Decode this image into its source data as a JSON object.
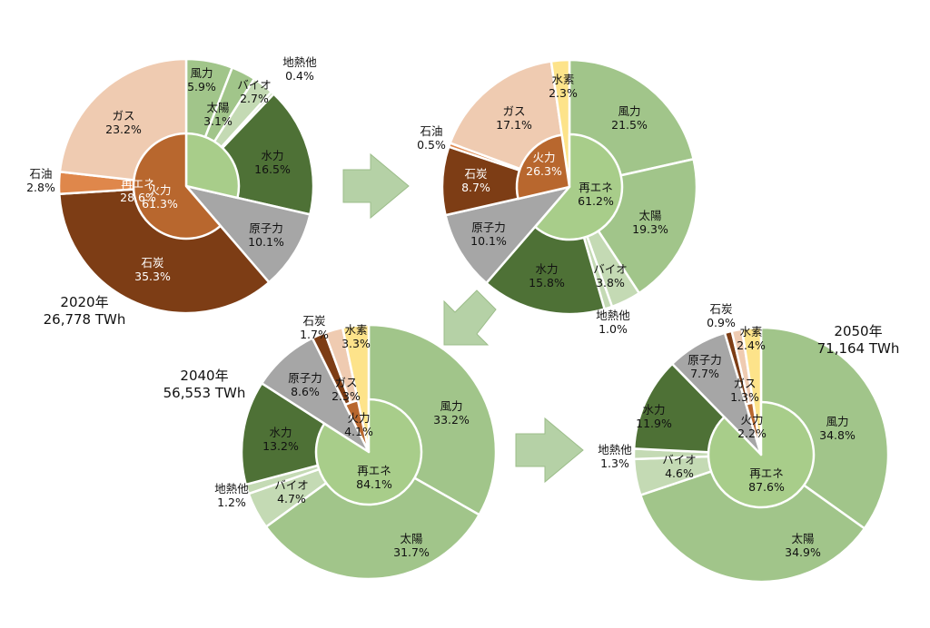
{
  "colors": {
    "fire": "#b8672e",
    "renew": "#a8cd8a",
    "wind": "#a1c58a",
    "solar": "#a1c58a",
    "bio": "#c4dab4",
    "geo": "#c4dab4",
    "hydro": "#4e7136",
    "nuclear": "#a6a6a6",
    "coal": "#7d3d15",
    "oil": "#df874b",
    "gas": "#efcbb1",
    "h2": "#fde38a",
    "arrow": "#b5d1a6",
    "arrow_edge": "#9cbd8a"
  },
  "chart_data": [
    {
      "type": "pie",
      "variant": "nested-donut",
      "caption_year": "2020年",
      "caption_total": "26,778 TWh",
      "inner": [
        {
          "label": "再エネ",
          "value": 28.6,
          "pct": "28.6%",
          "color_key": "renew"
        },
        {
          "label": "原子力",
          "value": 10.1,
          "color_key": "nuclear",
          "hidden": true
        },
        {
          "label": "火力",
          "value": 61.3,
          "pct": "61.3%",
          "color_key": "fire"
        }
      ],
      "outer": [
        {
          "label": "風力",
          "value": 5.9,
          "pct": "5.9%",
          "color_key": "wind"
        },
        {
          "label": "太陽",
          "value": 3.1,
          "pct": "3.1%",
          "color_key": "solar"
        },
        {
          "label": "バイオ",
          "value": 2.7,
          "pct": "2.7%",
          "color_key": "bio"
        },
        {
          "label": "地熱他",
          "value": 0.4,
          "pct": "0.4%",
          "color_key": "geo"
        },
        {
          "label": "水力",
          "value": 16.5,
          "pct": "16.5%",
          "color_key": "hydro"
        },
        {
          "label": "原子力",
          "value": 10.1,
          "pct": "10.1%",
          "color_key": "nuclear"
        },
        {
          "label": "石炭",
          "value": 35.3,
          "pct": "35.3%",
          "color_key": "coal"
        },
        {
          "label": "石油",
          "value": 2.8,
          "pct": "2.8%",
          "color_key": "oil"
        },
        {
          "label": "ガス",
          "value": 23.2,
          "pct": "23.2%",
          "color_key": "gas"
        }
      ]
    },
    {
      "type": "pie",
      "variant": "nested-donut",
      "caption_year": "",
      "caption_total": "",
      "inner": [
        {
          "label": "再エネ",
          "value": 61.2,
          "pct": "61.2%",
          "color_key": "renew"
        },
        {
          "label": "原子力",
          "value": 10.1,
          "color_key": "nuclear",
          "hidden": true
        },
        {
          "label": "火力",
          "value": 26.3,
          "pct": "26.3%",
          "color_key": "fire"
        },
        {
          "label": "水素",
          "value": 2.3,
          "color_key": "h2",
          "hidden": true
        }
      ],
      "outer": [
        {
          "label": "風力",
          "value": 21.5,
          "pct": "21.5%",
          "color_key": "wind"
        },
        {
          "label": "太陽",
          "value": 19.3,
          "pct": "19.3%",
          "color_key": "solar"
        },
        {
          "label": "バイオ",
          "value": 3.8,
          "pct": "3.8%",
          "color_key": "bio"
        },
        {
          "label": "地熱他",
          "value": 1.0,
          "pct": "1.0%",
          "color_key": "geo"
        },
        {
          "label": "水力",
          "value": 15.8,
          "pct": "15.8%",
          "color_key": "hydro"
        },
        {
          "label": "原子力",
          "value": 10.1,
          "pct": "10.1%",
          "color_key": "nuclear"
        },
        {
          "label": "石炭",
          "value": 8.7,
          "pct": "8.7%",
          "color_key": "coal"
        },
        {
          "label": "石油",
          "value": 0.5,
          "pct": "0.5%",
          "color_key": "oil"
        },
        {
          "label": "ガス",
          "value": 17.1,
          "pct": "17.1%",
          "color_key": "gas"
        },
        {
          "label": "水素",
          "value": 2.3,
          "pct": "2.3%",
          "color_key": "h2"
        }
      ]
    },
    {
      "type": "pie",
      "variant": "nested-donut",
      "caption_year": "2040年",
      "caption_total": "56,553 TWh",
      "inner": [
        {
          "label": "再エネ",
          "value": 84.1,
          "pct": "84.1%",
          "color_key": "renew"
        },
        {
          "label": "原子力",
          "value": 8.6,
          "color_key": "nuclear",
          "hidden": true
        },
        {
          "label": "火力",
          "value": 4.1,
          "pct": "4.1%",
          "color_key": "fire"
        },
        {
          "label": "水素",
          "value": 3.3,
          "color_key": "h2",
          "hidden": true
        }
      ],
      "outer": [
        {
          "label": "風力",
          "value": 33.2,
          "pct": "33.2%",
          "color_key": "wind"
        },
        {
          "label": "太陽",
          "value": 31.7,
          "pct": "31.7%",
          "color_key": "solar"
        },
        {
          "label": "バイオ",
          "value": 4.7,
          "pct": "4.7%",
          "color_key": "bio"
        },
        {
          "label": "地熱他",
          "value": 1.2,
          "pct": "1.2%",
          "color_key": "geo"
        },
        {
          "label": "水力",
          "value": 13.2,
          "pct": "13.2%",
          "color_key": "hydro"
        },
        {
          "label": "原子力",
          "value": 8.6,
          "pct": "8.6%",
          "color_key": "nuclear"
        },
        {
          "label": "石炭",
          "value": 1.7,
          "pct": "1.7%",
          "color_key": "coal"
        },
        {
          "label": "ガス",
          "value": 2.3,
          "pct": "2.3%",
          "color_key": "gas"
        },
        {
          "label": "水素",
          "value": 3.3,
          "pct": "3.3%",
          "color_key": "h2"
        }
      ]
    },
    {
      "type": "pie",
      "variant": "nested-donut",
      "caption_year": "2050年",
      "caption_total": "71,164 TWh",
      "inner": [
        {
          "label": "再エネ",
          "value": 87.6,
          "pct": "87.6%",
          "color_key": "renew"
        },
        {
          "label": "原子力",
          "value": 7.7,
          "color_key": "nuclear",
          "hidden": true
        },
        {
          "label": "火力",
          "value": 2.2,
          "pct": "2.2%",
          "color_key": "fire"
        },
        {
          "label": "水素",
          "value": 2.4,
          "color_key": "h2",
          "hidden": true
        }
      ],
      "outer": [
        {
          "label": "風力",
          "value": 34.8,
          "pct": "34.8%",
          "color_key": "wind"
        },
        {
          "label": "太陽",
          "value": 34.9,
          "pct": "34.9%",
          "color_key": "solar"
        },
        {
          "label": "バイオ",
          "value": 4.6,
          "pct": "4.6%",
          "color_key": "bio"
        },
        {
          "label": "地熱他",
          "value": 1.3,
          "pct": "1.3%",
          "color_key": "geo"
        },
        {
          "label": "水力",
          "value": 11.9,
          "pct": "11.9%",
          "color_key": "hydro"
        },
        {
          "label": "原子力",
          "value": 7.7,
          "pct": "7.7%",
          "color_key": "nuclear"
        },
        {
          "label": "石炭",
          "value": 0.9,
          "pct": "0.9%",
          "color_key": "coal"
        },
        {
          "label": "ガス",
          "value": 1.3,
          "pct": "1.3%",
          "color_key": "gas"
        },
        {
          "label": "水素",
          "value": 2.4,
          "pct": "2.4%",
          "color_key": "h2"
        }
      ]
    }
  ]
}
